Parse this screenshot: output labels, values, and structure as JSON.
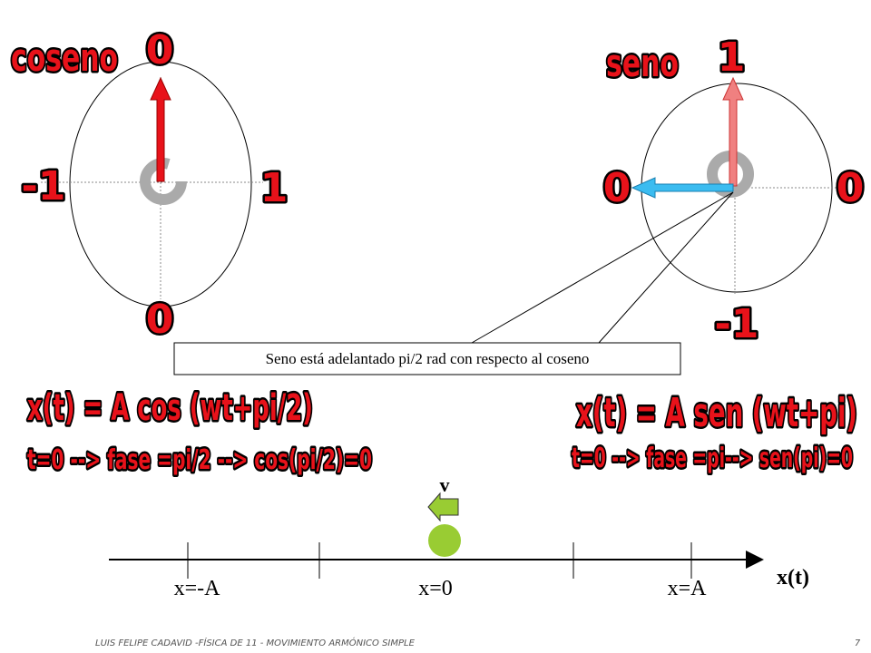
{
  "cosine_diagram": {
    "title": "coseno",
    "top": "0",
    "left": "-1",
    "right": "1",
    "bottom": "0"
  },
  "sine_diagram": {
    "title": "seno",
    "top": "1",
    "left": "0",
    "right": "0",
    "bottom": "-1"
  },
  "callout": "Seno está adelantado pi/2 rad con respecto al coseno",
  "cosine_formula": {
    "equation": "x(t) = A cos (wt+pi/2)",
    "phase": "t=0 --> fase =pi/2 --> cos(pi/2)=0"
  },
  "sine_formula": {
    "equation": "x(t) = A sen (wt+pi)",
    "phase": "t=0 --> fase =pi--> sen(pi)=0"
  },
  "axis": {
    "velocity": "v",
    "min_label": "x=-A",
    "zero_label": "x=0",
    "max_label": "x=A",
    "axis_label": "x(t)"
  },
  "footer": {
    "text": "LUIS FELIPE CADAVID -FÍSICA DE 11 - MOVIMIENTO ARMÓNICO SIMPLE",
    "page": "7"
  }
}
